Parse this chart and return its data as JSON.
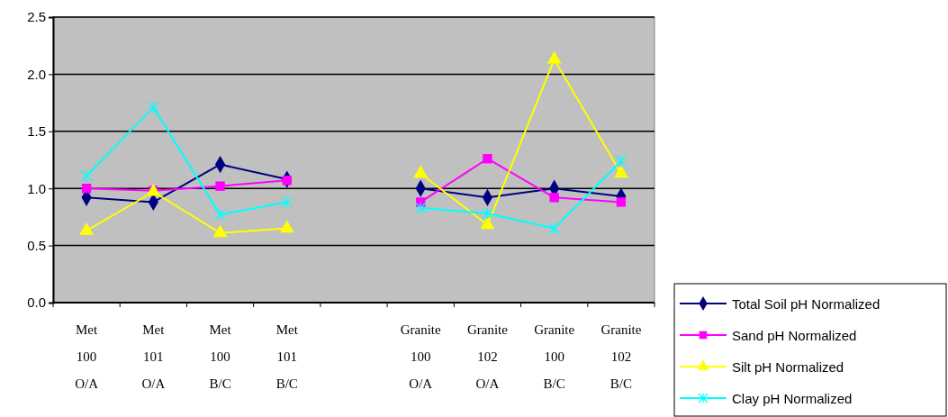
{
  "chart_data": {
    "type": "line",
    "categories": [
      "Met\n100\nO/A",
      "Met\n101\nO/A",
      "Met\n100\nB/C",
      "Met\n101\nB/C",
      null,
      "Granite\n100\nO/A",
      "Granite\n102\nO/A",
      "Granite\n100\nB/C",
      "Granite\n102\nB/C"
    ],
    "series": [
      {
        "name": "Total Soil pH Normalized",
        "color": "#000080",
        "marker": "diamond",
        "values": [
          0.92,
          0.88,
          1.21,
          1.08,
          null,
          1.0,
          0.92,
          1.0,
          0.93
        ]
      },
      {
        "name": "Sand pH Normalized",
        "color": "#ff00ff",
        "marker": "square",
        "values": [
          1.0,
          0.98,
          1.02,
          1.07,
          null,
          0.88,
          1.26,
          0.92,
          0.88
        ]
      },
      {
        "name": "Silt pH Normalized",
        "color": "#ffff00",
        "marker": "triangle",
        "values": [
          0.63,
          0.97,
          0.61,
          0.65,
          null,
          1.13,
          0.68,
          2.13,
          1.13
        ]
      },
      {
        "name": "Clay pH Normalized",
        "color": "#00ffff",
        "marker": "cross",
        "values": [
          1.11,
          1.71,
          0.77,
          0.88,
          null,
          0.83,
          0.78,
          0.65,
          1.24
        ]
      }
    ],
    "ylim": [
      0,
      2.5
    ],
    "yticks": [
      {
        "value": 0,
        "label": "0.0"
      },
      {
        "value": 0.5,
        "label": "0.5"
      },
      {
        "value": 1,
        "label": "1.0"
      },
      {
        "value": 1.5,
        "label": "1.5"
      },
      {
        "value": 2,
        "label": "2.0"
      },
      {
        "value": 2.5,
        "label": "2.5"
      }
    ],
    "grid": "y",
    "legend": "bottom right"
  }
}
